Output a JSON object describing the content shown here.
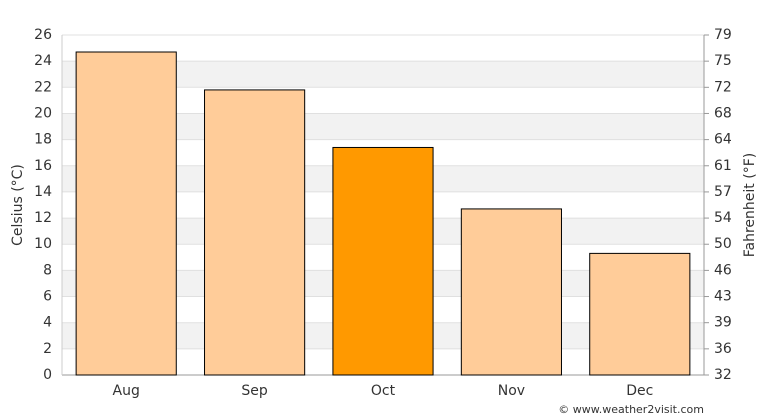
{
  "chart_data": {
    "type": "bar",
    "categories": [
      "Aug",
      "Sep",
      "Oct",
      "Nov",
      "Dec"
    ],
    "values": [
      24.7,
      21.8,
      17.4,
      12.7,
      9.3
    ],
    "colors": [
      "#ffcc99",
      "#ffcc99",
      "#ff9900",
      "#ffcc99",
      "#ffcc99"
    ],
    "ylabel": "Celsius (°C)",
    "y2label": "Fahrenheit (°F)",
    "ylim": [
      0,
      26
    ],
    "yticks": [
      0,
      2,
      4,
      6,
      8,
      10,
      12,
      14,
      16,
      18,
      20,
      22,
      24,
      26
    ],
    "y2lim": [
      32,
      78.8
    ],
    "y2ticks": [
      32,
      {
        "value": 35.6,
        "label": "36"
      },
      {
        "value": 39.2,
        "label": "39"
      },
      {
        "value": 42.8,
        "label": "43"
      },
      {
        "value": 46.4,
        "label": "46"
      },
      50,
      {
        "value": 53.6,
        "label": "54"
      },
      {
        "value": 57.2,
        "label": "57"
      },
      {
        "value": 60.8,
        "label": "61"
      },
      {
        "value": 64.4,
        "label": "64"
      },
      68,
      {
        "value": 71.6,
        "label": "72"
      },
      {
        "value": 75.2,
        "label": "75"
      },
      {
        "value": 78.8,
        "label": "79"
      }
    ],
    "grid": true,
    "credit": "© www.weather2visit.com"
  }
}
